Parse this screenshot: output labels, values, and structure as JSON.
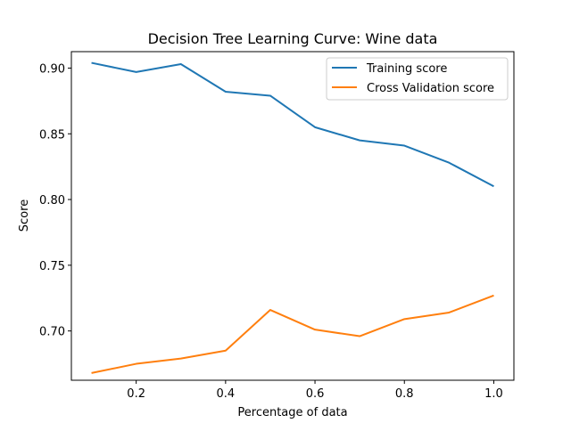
{
  "chart_data": {
    "type": "line",
    "title": "Decision Tree Learning Curve: Wine data",
    "xlabel": "Percentage of data",
    "ylabel": "Score",
    "xlim": [
      0.055,
      1.045
    ],
    "ylim": [
      0.6625,
      0.7875
    ],
    "ylim_full": [
      0.6625,
      0.9125
    ],
    "xticks": [
      0.2,
      0.4,
      0.6,
      0.8,
      1.0
    ],
    "xtick_labels": [
      "0.2",
      "0.4",
      "0.6",
      "0.8",
      "1.0"
    ],
    "yticks": [
      0.7,
      0.75,
      0.8,
      0.85,
      0.9
    ],
    "ytick_labels": [
      "0.70",
      "0.75",
      "0.80",
      "0.85",
      "0.90"
    ],
    "grid": false,
    "legend_position": "top-right",
    "x": [
      0.1,
      0.2,
      0.3,
      0.4,
      0.5,
      0.6,
      0.7,
      0.8,
      0.9,
      1.0
    ],
    "series": [
      {
        "name": "Training score",
        "color": "#1f77b4",
        "values": [
          0.904,
          0.897,
          0.903,
          0.882,
          0.879,
          0.855,
          0.845,
          0.841,
          0.828,
          0.81
        ]
      },
      {
        "name": "Cross Validation score",
        "color": "#ff7f0e",
        "values": [
          0.668,
          0.675,
          0.679,
          0.685,
          0.716,
          0.701,
          0.696,
          0.709,
          0.714,
          0.727
        ]
      }
    ]
  }
}
